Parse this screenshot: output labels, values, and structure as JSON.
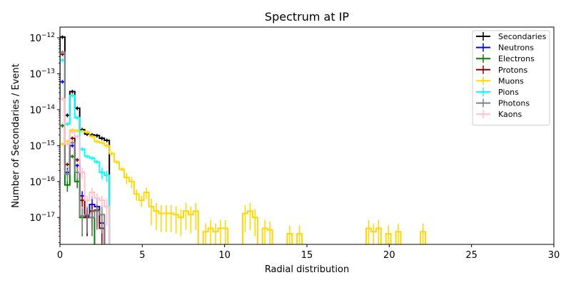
{
  "chart_data": {
    "type": "line",
    "title": "Spectrum at IP",
    "xlabel": "Radial distribution",
    "ylabel": "Number of Secondaries / Event",
    "xlim": [
      0,
      30
    ],
    "ylim_log10": [
      -17.75,
      -11.7
    ],
    "y_scale": "log",
    "x_ticks": [
      0,
      5,
      10,
      15,
      20,
      25,
      30
    ],
    "y_ticks": [
      {
        "exp": -12,
        "label": "10",
        "sup": "−12"
      },
      {
        "exp": -13,
        "label": "10",
        "sup": "−13"
      },
      {
        "exp": -14,
        "label": "10",
        "sup": "−14"
      },
      {
        "exp": -15,
        "label": "10",
        "sup": "−15"
      },
      {
        "exp": -16,
        "label": "10",
        "sup": "−16"
      },
      {
        "exp": -17,
        "label": "10",
        "sup": "−17"
      }
    ],
    "grid": false,
    "legend_position": "top-right",
    "bin_width": 0.3,
    "series": [
      {
        "name": "Secondaries",
        "color": "#000000",
        "x": [
          0,
          0.3,
          0.6,
          0.9,
          1.2,
          1.5,
          1.8,
          2.1,
          2.4,
          2.7
        ],
        "y": [
          1.05e-12,
          7e-15,
          3.2e-14,
          1.1e-14,
          2.8e-15,
          2.1e-15,
          2e-15,
          1.9e-15,
          1.6e-15,
          1.4e-15
        ]
      },
      {
        "name": "Neutrons",
        "color": "#0000ff",
        "x": [
          0,
          0.3,
          0.6,
          0.9,
          1.2,
          1.5,
          1.8,
          2.1,
          2.4
        ],
        "y": [
          6e-14,
          1.8e-16,
          1e-15,
          2.8e-16,
          4e-17,
          1.1e-17,
          2.3e-17,
          2e-17,
          7e-18
        ]
      },
      {
        "name": "Electrons",
        "color": "#008000",
        "x": [
          0,
          0.3,
          0.6,
          0.9,
          1.2,
          1.5,
          1.8
        ],
        "y": [
          3.6e-15,
          8e-17,
          5e-16,
          1e-16,
          1e-17,
          1e-17,
          1e-17
        ]
      },
      {
        "name": "Protons",
        "color": "#8b0000",
        "x": [
          0,
          0.3,
          0.6,
          0.9,
          1.2,
          1.5,
          1.8,
          2.1,
          2.4
        ],
        "y": [
          3.5e-13,
          3e-16,
          1.6e-15,
          4e-16,
          3e-17,
          1e-17,
          1.5e-17,
          1.6e-17,
          5e-18
        ]
      },
      {
        "name": "Muons",
        "color": "#ffd700",
        "x": [
          0,
          0.3,
          0.6,
          0.9,
          1.2,
          1.5,
          1.8,
          2.1,
          2.4,
          2.7,
          3.0,
          3.3,
          3.6,
          3.9,
          4.2,
          4.5,
          4.8,
          5.1,
          5.4,
          5.7,
          6.0,
          6.3,
          6.6,
          6.9,
          7.2,
          7.5,
          7.8,
          8.1,
          8.7,
          9.0,
          9.3,
          9.6,
          9.9,
          11.1,
          11.4,
          11.7,
          12.3,
          12.6,
          13.8,
          14.4,
          18.6,
          18.9,
          19.2,
          19.8,
          20.4,
          21.9
        ],
        "y": [
          1.1e-15,
          1.3e-15,
          2.7e-15,
          2.6e-15,
          2.5e-15,
          2.4e-15,
          1.8e-15,
          1.3e-15,
          1.2e-15,
          1e-15,
          6e-16,
          3.5e-16,
          2.2e-16,
          1.3e-16,
          1e-16,
          4.5e-17,
          3e-17,
          5e-17,
          2e-17,
          1.5e-17,
          1.3e-17,
          1.3e-17,
          1.3e-17,
          1.2e-17,
          1e-17,
          1.5e-17,
          1.2e-17,
          1.5e-17,
          4e-18,
          5e-18,
          4e-18,
          5e-18,
          5e-18,
          1.3e-17,
          1.5e-17,
          1e-17,
          5e-18,
          4.5e-18,
          3.5e-18,
          3.5e-18,
          5e-18,
          4e-18,
          5e-18,
          3.5e-18,
          4e-18,
          4e-18
        ]
      },
      {
        "name": "Pions",
        "color": "#00ffff",
        "x": [
          0,
          0.3,
          0.6,
          0.9,
          1.2,
          1.5,
          1.8,
          2.1,
          2.4,
          2.7
        ],
        "y": [
          2.4e-13,
          4e-15,
          2.5e-14,
          6e-15,
          8e-16,
          5e-16,
          4.5e-16,
          3.5e-16,
          1.8e-16,
          1.5e-16
        ]
      },
      {
        "name": "Photons",
        "color": "#808080",
        "x": [
          0,
          0.3,
          0.6,
          0.9,
          1.2,
          1.5,
          1.8,
          2.1,
          2.4
        ],
        "y": [
          4e-13,
          1.6e-16,
          1.2e-15,
          1.8e-16,
          1.1e-17,
          1.2e-17,
          1e-17,
          1.5e-17,
          1.2e-17
        ]
      },
      {
        "name": "Kaons",
        "color": "#ffc0cb",
        "x": [
          0,
          0.3,
          0.6,
          0.9,
          1.2,
          1.5,
          1.8,
          2.1,
          2.4,
          2.7
        ],
        "y": [
          2e-14,
          1.1e-15,
          2.4e-15,
          1.8e-15,
          1.8e-16,
          3e-17,
          5e-17,
          3.5e-17,
          3e-17,
          2e-17
        ]
      }
    ]
  }
}
